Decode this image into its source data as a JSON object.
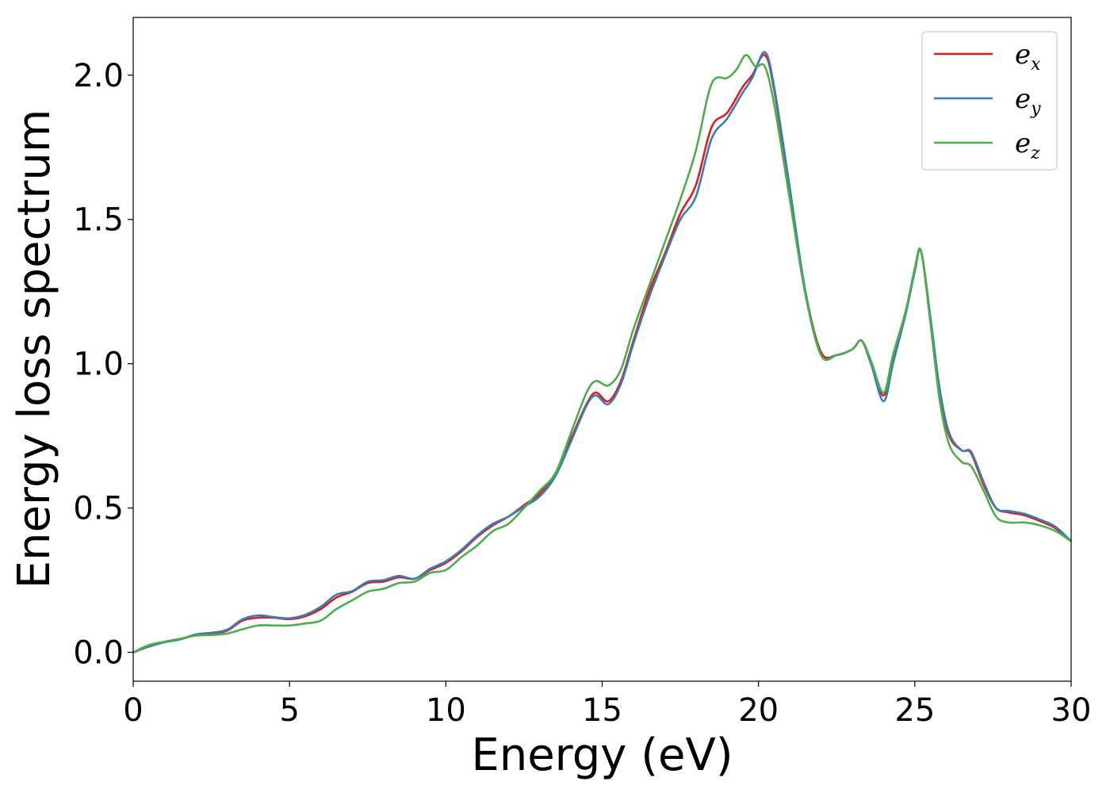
{
  "chart_data": {
    "type": "line",
    "title": "",
    "xlabel": "Energy (eV)",
    "ylabel": "Energy loss spectrum",
    "xlim": [
      0,
      30
    ],
    "ylim": [
      -0.1,
      2.2
    ],
    "xticks": [
      0,
      5,
      10,
      15,
      20,
      25,
      30
    ],
    "xtick_labels": [
      "0",
      "5",
      "10",
      "15",
      "20",
      "25",
      "30"
    ],
    "yticks": [
      0.0,
      0.5,
      1.0,
      1.5,
      2.0
    ],
    "ytick_labels": [
      "0.0",
      "0.5",
      "1.0",
      "1.5",
      "2.0"
    ],
    "grid": false,
    "legend_position": "top-right",
    "series": [
      {
        "name": "e_x",
        "label_base": "e",
        "label_sub": "x",
        "color": "#e41a1c",
        "x": [
          0,
          0.5,
          1,
          1.5,
          2,
          2.5,
          3,
          3.5,
          4,
          4.5,
          5,
          5.5,
          6,
          6.5,
          7,
          7.5,
          8,
          8.5,
          9,
          9.5,
          10,
          10.5,
          11,
          11.5,
          12,
          12.5,
          13,
          13.5,
          14,
          14.5,
          14.8,
          15.2,
          15.6,
          16,
          16.5,
          17,
          17.5,
          18,
          18.5,
          19,
          19.5,
          19.8,
          20.2,
          20.5,
          21,
          21.5,
          22,
          22.5,
          23,
          23.3,
          23.6,
          24,
          24.3,
          24.7,
          25,
          25.2,
          25.5,
          25.8,
          26.1,
          26.5,
          26.8,
          27.2,
          27.6,
          28,
          28.5,
          29,
          29.5,
          30
        ],
        "y": [
          0.0,
          0.02,
          0.035,
          0.045,
          0.06,
          0.065,
          0.075,
          0.11,
          0.12,
          0.12,
          0.115,
          0.125,
          0.15,
          0.19,
          0.21,
          0.24,
          0.245,
          0.26,
          0.255,
          0.285,
          0.31,
          0.35,
          0.4,
          0.44,
          0.47,
          0.51,
          0.55,
          0.62,
          0.74,
          0.86,
          0.9,
          0.87,
          0.94,
          1.08,
          1.25,
          1.38,
          1.52,
          1.62,
          1.82,
          1.87,
          1.96,
          2.0,
          2.07,
          1.95,
          1.6,
          1.25,
          1.04,
          1.03,
          1.05,
          1.08,
          1.0,
          0.89,
          1.02,
          1.17,
          1.33,
          1.39,
          1.15,
          0.9,
          0.75,
          0.7,
          0.69,
          0.58,
          0.5,
          0.485,
          0.475,
          0.455,
          0.43,
          0.385
        ]
      },
      {
        "name": "e_y",
        "label_base": "e",
        "label_sub": "y",
        "color": "#377eb8",
        "x": [
          0,
          0.5,
          1,
          1.5,
          2,
          2.5,
          3,
          3.5,
          4,
          4.5,
          5,
          5.5,
          6,
          6.5,
          7,
          7.5,
          8,
          8.5,
          9,
          9.5,
          10,
          10.5,
          11,
          11.5,
          12,
          12.5,
          13,
          13.5,
          14,
          14.5,
          14.8,
          15.2,
          15.6,
          16,
          16.5,
          17,
          17.5,
          18,
          18.5,
          19,
          19.5,
          19.8,
          20.2,
          20.5,
          21,
          21.5,
          22,
          22.5,
          23,
          23.3,
          23.6,
          24,
          24.3,
          24.7,
          25,
          25.2,
          25.5,
          25.8,
          26.1,
          26.5,
          26.8,
          27.2,
          27.6,
          28,
          28.5,
          29,
          29.5,
          30
        ],
        "y": [
          0.0,
          0.02,
          0.035,
          0.045,
          0.062,
          0.068,
          0.078,
          0.115,
          0.128,
          0.122,
          0.118,
          0.13,
          0.158,
          0.2,
          0.212,
          0.245,
          0.25,
          0.265,
          0.255,
          0.29,
          0.315,
          0.355,
          0.405,
          0.445,
          0.47,
          0.505,
          0.54,
          0.61,
          0.73,
          0.855,
          0.89,
          0.86,
          0.93,
          1.07,
          1.23,
          1.37,
          1.5,
          1.58,
          1.78,
          1.85,
          1.94,
          1.99,
          2.08,
          1.96,
          1.61,
          1.25,
          1.03,
          1.03,
          1.05,
          1.08,
          1.0,
          0.87,
          1.0,
          1.17,
          1.32,
          1.39,
          1.16,
          0.91,
          0.76,
          0.7,
          0.695,
          0.59,
          0.5,
          0.49,
          0.48,
          0.46,
          0.435,
          0.385
        ]
      },
      {
        "name": "e_z",
        "label_base": "e",
        "label_sub": "z",
        "color": "#4daf4a",
        "x": [
          0,
          0.5,
          1,
          1.5,
          2,
          2.5,
          3,
          3.5,
          4,
          4.5,
          5,
          5.5,
          6,
          6.5,
          7,
          7.5,
          8,
          8.5,
          9,
          9.5,
          10,
          10.5,
          11,
          11.5,
          12,
          12.5,
          13,
          13.5,
          14,
          14.5,
          14.8,
          15.2,
          15.6,
          16,
          16.5,
          17,
          17.5,
          18,
          18.5,
          19,
          19.3,
          19.6,
          19.9,
          20.2,
          20.5,
          21,
          21.5,
          22,
          22.5,
          23,
          23.3,
          23.6,
          24,
          24.3,
          24.7,
          25,
          25.2,
          25.5,
          25.8,
          26.1,
          26.5,
          26.8,
          27.2,
          27.6,
          28,
          28.5,
          29,
          29.5,
          30
        ],
        "y": [
          0.0,
          0.025,
          0.037,
          0.047,
          0.058,
          0.06,
          0.065,
          0.08,
          0.093,
          0.093,
          0.093,
          0.1,
          0.11,
          0.15,
          0.18,
          0.21,
          0.22,
          0.24,
          0.245,
          0.275,
          0.285,
          0.33,
          0.37,
          0.42,
          0.445,
          0.5,
          0.56,
          0.62,
          0.76,
          0.9,
          0.94,
          0.925,
          0.98,
          1.12,
          1.27,
          1.42,
          1.57,
          1.74,
          1.97,
          1.99,
          2.02,
          2.07,
          2.03,
          2.03,
          1.9,
          1.57,
          1.24,
          1.03,
          1.03,
          1.05,
          1.08,
          1.01,
          0.9,
          1.03,
          1.18,
          1.33,
          1.39,
          1.14,
          0.87,
          0.72,
          0.66,
          0.645,
          0.56,
          0.47,
          0.45,
          0.45,
          0.44,
          0.42,
          0.385
        ]
      }
    ]
  }
}
